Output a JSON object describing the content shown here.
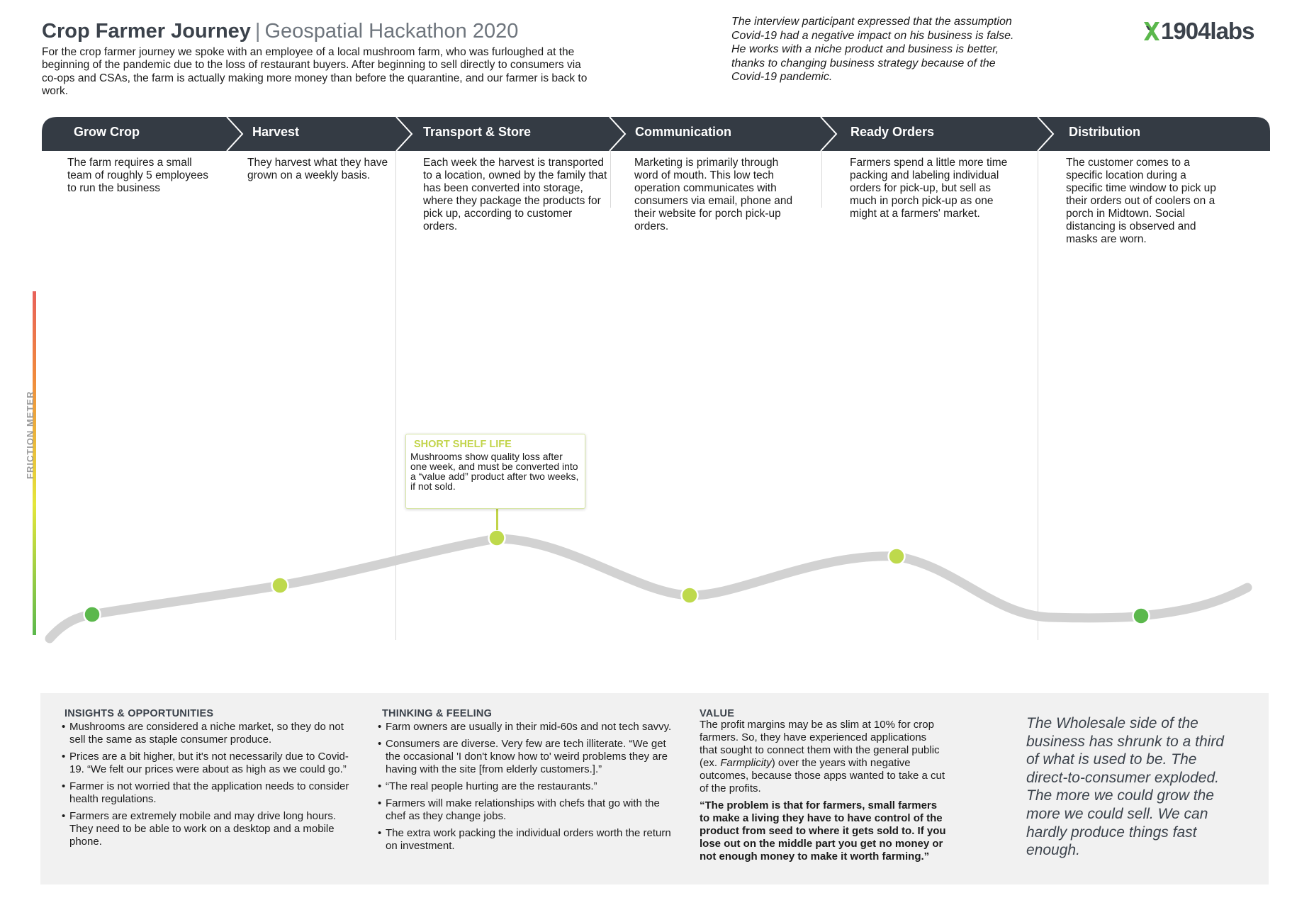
{
  "header": {
    "title": "Crop Farmer Journey",
    "separator": "|",
    "subtitle": "Geospatial Hackathon 2020",
    "intro": "For the crop farmer journey we spoke with an employee of a local mushroom farm, who was furloughed at the beginning of the pandemic due to the loss of restaurant buyers. After beginning to sell directly to consumers via co-ops and CSAs, the farm is actually making more money than before the quarantine, and our farmer is back to work.",
    "quote": "The interview participant expressed that the assumption Covid-19 had a negative impact on his business is false. He works with a niche product and business is better, thanks to changing business strategy because of the Covid-19 pandemic."
  },
  "logo": {
    "text": "1904labs",
    "icon": "x-mark-icon"
  },
  "colors": {
    "stage_bar": "#343b44",
    "curve": "#d2d2d2",
    "dot_green": "#5bb84c",
    "dot_lime": "#bed94c",
    "callout_accent": "#c2d44a",
    "panel_bg": "#f1f1f1"
  },
  "stages": [
    {
      "label": "Grow Crop",
      "description": "The farm requires a small team of roughly 5 employees to run the business"
    },
    {
      "label": "Harvest",
      "description": "They harvest what they have grown on a weekly basis."
    },
    {
      "label": "Transport & Store",
      "description": "Each week the harvest is transported to a location, owned by the family that has been converted into storage, where they package the products for pick up, according to customer orders."
    },
    {
      "label": "Communication",
      "description": "Marketing is primarily through word of mouth. This low tech operation communicates with consumers via email, phone and their website for porch pick-up orders."
    },
    {
      "label": "Ready Orders",
      "description": "Farmers spend a little more time packing and labeling individual orders for pick-up, but sell as much in porch pick-up as one might at a farmers' market."
    },
    {
      "label": "Distribution",
      "description": "The customer comes to a specific location during a specific time window to pick up their orders out of coolers on a porch in Midtown. Social distancing is observed and masks are worn."
    }
  ],
  "friction_meter": {
    "label": "FRICTION METER",
    "points": [
      {
        "stage": "Grow Crop",
        "friction": 0.07,
        "color": "green"
      },
      {
        "stage": "Harvest",
        "friction": 0.15,
        "color": "lime"
      },
      {
        "stage": "Transport & Store",
        "friction": 0.29,
        "color": "lime"
      },
      {
        "stage": "Communication",
        "friction": 0.12,
        "color": "lime"
      },
      {
        "stage": "Ready Orders",
        "friction": 0.23,
        "color": "lime"
      },
      {
        "stage": "Distribution",
        "friction": 0.06,
        "color": "green"
      }
    ]
  },
  "callout": {
    "title": "SHORT SHELF LIFE",
    "body": "Mushrooms show quality loss after one week, and must be converted into a “value add” product after two weeks, if not sold."
  },
  "insights": {
    "heading": "INSIGHTS & OPPORTUNITIES",
    "items": [
      "Mushrooms are considered a niche market, so they do not sell the same as staple consumer produce.",
      "Prices are a bit higher, but it's not necessarily due to Covid-19. “We felt our prices were about as high as we could go.”",
      "Farmer is not worried that the application needs to consider health regulations.",
      "Farmers are extremely mobile and may drive long hours. They need to be able to work on a desktop and a mobile phone."
    ]
  },
  "thinking": {
    "heading": "THINKING & FEELING",
    "items": [
      "Farm owners are usually in their mid-60s and not tech savvy.",
      "Consumers are diverse. Very few are tech illiterate. “We get the occasional 'I don't know how to' weird problems they are having with the site [from elderly customers.].”",
      "“The real people hurting are the restaurants.”",
      "Farmers will make relationships with chefs that go with the chef as they change jobs.",
      "The extra work packing the individual orders worth the return on investment."
    ]
  },
  "value": {
    "heading": "VALUE",
    "text_before": "The profit margins may be as slim at 10% for crop farmers. So, they have experienced applications that sought to connect them with the general public (ex. ",
    "text_italic": "Farmplicity",
    "text_after": ") over the years with negative outcomes, because those apps wanted to take a cut of the profits.",
    "quote": "“The problem is that for farmers, small farmers to make a living they have to have control of the product from seed to where it gets sold to. If you lose out on the middle part you get no money or not enough money to make it worth farming.”"
  },
  "bottom_quote": "The Wholesale side of the business has shrunk to a third of what is used to be. The direct-to-consumer exploded. The more we could grow the more we could sell. We can hardly produce things fast enough."
}
